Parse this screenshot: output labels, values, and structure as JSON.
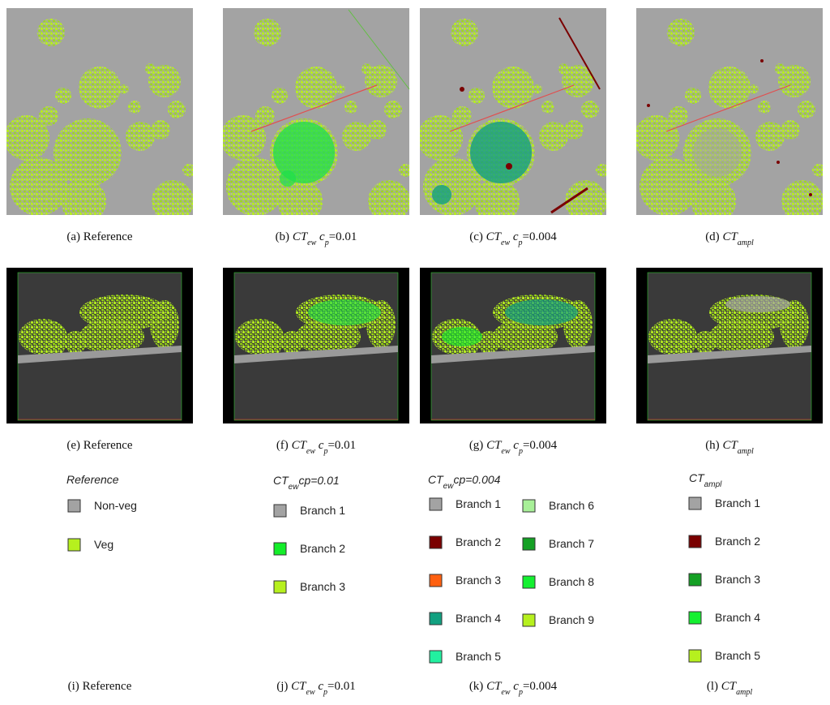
{
  "captions": [
    {
      "tag": "(a)",
      "text": "Reference"
    },
    {
      "tag": "(b)",
      "method": "CT",
      "method_sub": "ew",
      "param": "c",
      "param_sub": "p",
      "param_value": "=0.01"
    },
    {
      "tag": "(c)",
      "method": "CT",
      "method_sub": "ew",
      "param": "c",
      "param_sub": "p",
      "param_value": "=0.004"
    },
    {
      "tag": "(d)",
      "method": "CT",
      "method_sub": "ampl"
    },
    {
      "tag": "(e)",
      "text": "Reference"
    },
    {
      "tag": "(f)",
      "method": "CT",
      "method_sub": "ew",
      "param": "c",
      "param_sub": "p",
      "param_value": "=0.01"
    },
    {
      "tag": "(g)",
      "method": "CT",
      "method_sub": "ew",
      "param": "c",
      "param_sub": "p",
      "param_value": "=0.004"
    },
    {
      "tag": "(h)",
      "method": "CT",
      "method_sub": "ampl"
    },
    {
      "tag": "(i)",
      "text": "Reference"
    },
    {
      "tag": "(j)",
      "method": "CT",
      "method_sub": "ew",
      "param": "c",
      "param_sub": "p",
      "param_value": "=0.01"
    },
    {
      "tag": "(k)",
      "method": "CT",
      "method_sub": "ew",
      "param": "c",
      "param_sub": "p",
      "param_value": "=0.004"
    },
    {
      "tag": "(l)",
      "method": "CT",
      "method_sub": "ampl"
    }
  ],
  "legends": [
    {
      "title": {
        "main": "Reference"
      },
      "items": [
        {
          "label": "Non-veg",
          "color": "#a3a3a3"
        },
        {
          "label": "Veg",
          "color": "#b6f01e"
        }
      ]
    },
    {
      "title": {
        "main": "CT",
        "sub": "ew",
        "rest": "cp=0.01"
      },
      "items": [
        {
          "label": "Branch 1",
          "color": "#a3a3a3"
        },
        {
          "label": "Branch 2",
          "color": "#14ee2a"
        },
        {
          "label": "Branch 3",
          "color": "#b6f01e"
        }
      ]
    },
    {
      "title": {
        "main": "CT",
        "sub": "ew",
        "rest": "cp=0.004"
      },
      "items": [
        {
          "label": "Branch 1",
          "color": "#a3a3a3"
        },
        {
          "label": "Branch 2",
          "color": "#7a0000"
        },
        {
          "label": "Branch 3",
          "color": "#ff6010"
        },
        {
          "label": "Branch 4",
          "color": "#12a080"
        },
        {
          "label": "Branch 5",
          "color": "#22f0a0"
        },
        {
          "label": "Branch 6",
          "color": "#a8f098"
        },
        {
          "label": "Branch 7",
          "color": "#14a024"
        },
        {
          "label": "Branch 8",
          "color": "#14f030"
        },
        {
          "label": "Branch 9",
          "color": "#b6f01e"
        }
      ]
    },
    {
      "title": {
        "main": "CT",
        "sub": "ampl"
      },
      "items": [
        {
          "label": "Branch 1",
          "color": "#a3a3a3"
        },
        {
          "label": "Branch 2",
          "color": "#7a0000"
        },
        {
          "label": "Branch 3",
          "color": "#14a024"
        },
        {
          "label": "Branch 4",
          "color": "#14f030"
        },
        {
          "label": "Branch 5",
          "color": "#b6f01e"
        }
      ]
    }
  ]
}
